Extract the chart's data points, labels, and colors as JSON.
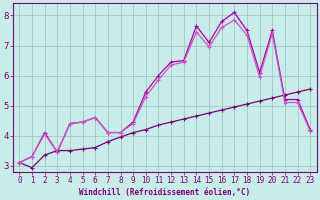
{
  "xlabel": "Windchill (Refroidissement éolien,°C)",
  "xlim_min": -0.5,
  "xlim_max": 23.5,
  "ylim_min": 2.8,
  "ylim_max": 8.4,
  "xticks": [
    0,
    1,
    2,
    3,
    4,
    5,
    6,
    7,
    8,
    9,
    10,
    11,
    12,
    13,
    14,
    15,
    16,
    17,
    18,
    19,
    20,
    21,
    22,
    23
  ],
  "yticks": [
    3,
    4,
    5,
    6,
    7,
    8
  ],
  "bg_color": "#c8ece8",
  "grid_color": "#9dbfbf",
  "line1_color": "#7b007b",
  "line2_color": "#aa00aa",
  "line3_color": "#cc55cc",
  "line1_x": [
    0,
    1,
    2,
    3,
    4,
    5,
    6,
    7,
    8,
    9,
    10,
    11,
    12,
    13,
    14,
    15,
    16,
    17,
    18,
    19,
    20,
    21,
    22,
    23
  ],
  "line1_y": [
    3.1,
    2.93,
    3.35,
    3.5,
    3.5,
    3.55,
    3.6,
    3.8,
    3.95,
    4.1,
    4.2,
    4.35,
    4.45,
    4.55,
    4.65,
    4.75,
    4.85,
    4.95,
    5.05,
    5.15,
    5.25,
    5.35,
    5.45,
    5.55
  ],
  "line2_x": [
    0,
    1,
    2,
    3,
    4,
    5,
    6,
    7,
    8,
    9,
    10,
    11,
    12,
    13,
    14,
    15,
    16,
    17,
    18,
    19,
    20,
    21,
    22,
    23
  ],
  "line2_y": [
    3.1,
    3.3,
    4.1,
    3.45,
    4.4,
    4.45,
    4.6,
    4.1,
    4.1,
    4.45,
    5.45,
    6.0,
    6.45,
    6.5,
    7.65,
    7.1,
    7.8,
    8.1,
    7.5,
    6.1,
    7.5,
    5.2,
    5.2,
    4.2
  ],
  "line3_x": [
    0,
    1,
    2,
    3,
    4,
    5,
    6,
    7,
    8,
    9,
    10,
    11,
    12,
    13,
    14,
    15,
    16,
    17,
    18,
    19,
    20,
    21,
    22,
    23
  ],
  "line3_y": [
    3.1,
    3.3,
    4.05,
    3.45,
    4.4,
    4.45,
    4.6,
    4.1,
    4.1,
    4.4,
    5.3,
    5.85,
    6.35,
    6.45,
    7.45,
    6.95,
    7.6,
    7.85,
    7.35,
    5.95,
    7.4,
    5.1,
    5.1,
    4.15
  ],
  "tick_fontsize": 5.5,
  "label_fontsize": 5.5,
  "ylabel_fontsize": 6.0,
  "markersize": 2.5
}
